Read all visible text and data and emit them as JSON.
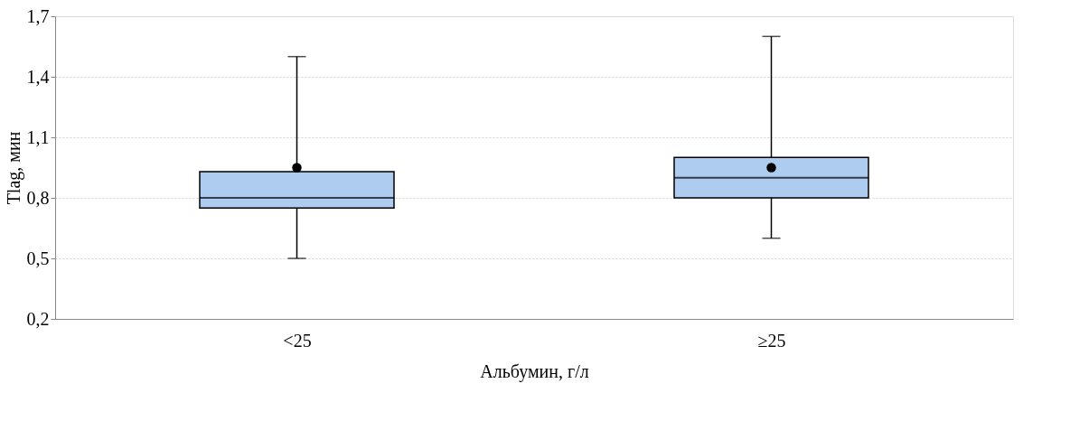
{
  "chart_data": {
    "type": "box",
    "xlabel": "Альбумин, г/л",
    "ylabel": "Tlag, мин",
    "categories": [
      "<25",
      "≥25"
    ],
    "boxes": [
      {
        "low": 0.5,
        "q1": 0.75,
        "median": 0.8,
        "q3": 0.93,
        "high": 1.5,
        "mean": 0.95
      },
      {
        "low": 0.6,
        "q1": 0.8,
        "median": 0.9,
        "q3": 1.0,
        "high": 1.6,
        "mean": 0.95
      }
    ],
    "color": "#aecbf0",
    "ylim": [
      0.2,
      1.7
    ],
    "yticks": [
      {
        "value": 0.2,
        "label": "0,2"
      },
      {
        "value": 0.5,
        "label": "0,5"
      },
      {
        "value": 0.8,
        "label": "0,8"
      },
      {
        "value": 1.1,
        "label": "1,1"
      },
      {
        "value": 1.4,
        "label": "1,4"
      },
      {
        "value": 1.7,
        "label": "1,7"
      }
    ],
    "grid": "y"
  }
}
